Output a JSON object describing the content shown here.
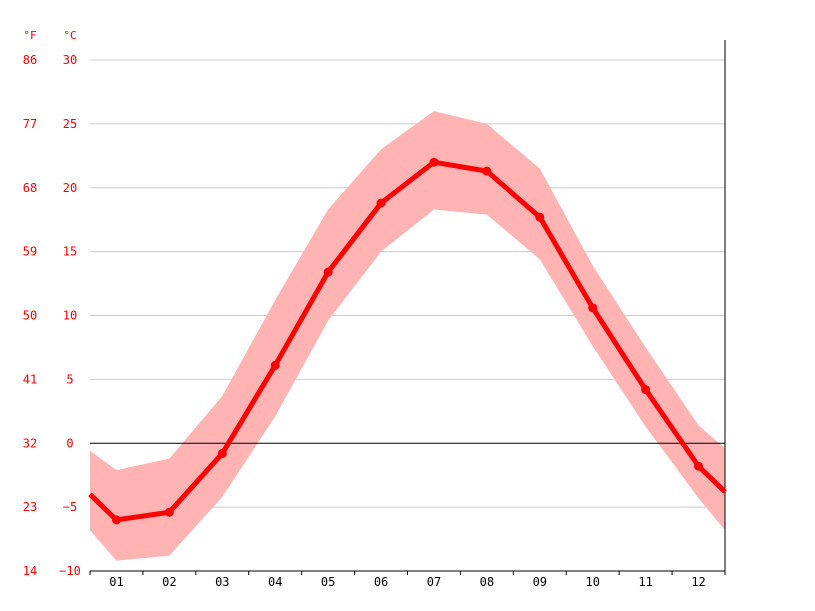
{
  "chart_data": {
    "type": "line",
    "title": "",
    "categories": [
      "01",
      "02",
      "03",
      "04",
      "05",
      "06",
      "07",
      "08",
      "09",
      "10",
      "11",
      "12"
    ],
    "unit_labels": {
      "fahrenheit": "°F",
      "celsius": "°C"
    },
    "y_ticks_celsius": [
      "30",
      "25",
      "20",
      "15",
      "10",
      "5",
      "0",
      "−5",
      "−10"
    ],
    "y_ticks_fahrenheit": [
      "86",
      "77",
      "68",
      "59",
      "50",
      "41",
      "32",
      "23",
      "14"
    ],
    "ylim": [
      -10,
      30
    ],
    "series": [
      {
        "values": [
          -6.0,
          -5.4,
          -0.8,
          6.1,
          13.4,
          18.8,
          22.0,
          21.3,
          17.7,
          10.6,
          4.2,
          -1.8
        ]
      }
    ],
    "band": {
      "upper": [
        -2.1,
        -1.2,
        3.7,
        11.2,
        18.3,
        23.0,
        26.0,
        25.0,
        21.5,
        13.9,
        7.5,
        1.4
      ],
      "lower": [
        -9.2,
        -8.8,
        -4.2,
        2.1,
        9.6,
        15.0,
        18.3,
        17.9,
        14.4,
        7.6,
        1.3,
        -4.3
      ]
    },
    "edge_values": {
      "mean_start": -4.0,
      "mean_end": -3.8,
      "upper_start": -0.6,
      "upper_end": -0.4,
      "lower_start": -6.8,
      "lower_end": -6.8
    },
    "zero_line": true,
    "grid": true,
    "colors": {
      "line": "#ff0000",
      "band": "#ffb3b3",
      "grid": "#cccccc",
      "axis": "#000000",
      "labels_y": "#ff0000",
      "labels_x": "#000000"
    }
  }
}
